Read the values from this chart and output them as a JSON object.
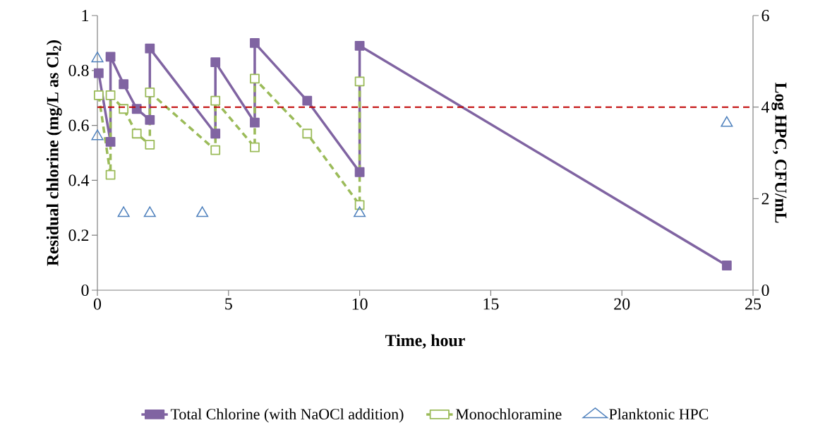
{
  "chart_data": {
    "type": "line",
    "xlabel": "Time, hour",
    "ylabel": "Residual chlorine  (mg/L as Cl$_{2}$)",
    "y2label": "Log HPC, CFU/mL",
    "xlim": [
      0,
      25
    ],
    "xticks": [
      0,
      5,
      10,
      15,
      20,
      25
    ],
    "ylim": [
      0,
      1
    ],
    "yticks": [
      0,
      0.2,
      0.4,
      0.6,
      0.8,
      1
    ],
    "y2lim": [
      0,
      6
    ],
    "y2ticks": [
      0,
      2,
      4,
      6
    ],
    "legend": "bottom",
    "grid": false,
    "series": [
      {
        "name": "Total Chlorine (with NaOCl addition)",
        "color": "#8064a2",
        "marker": "square",
        "line_style": "solid",
        "x": [
          0.05,
          0.5,
          0.5,
          1,
          1.5,
          2,
          2,
          4.5,
          4.5,
          6,
          6,
          8,
          10,
          10,
          24
        ],
        "values": [
          0.79,
          0.54,
          0.85,
          0.75,
          0.66,
          0.62,
          0.88,
          0.57,
          0.83,
          0.61,
          0.9,
          0.69,
          0.43,
          0.89,
          0.09
        ]
      },
      {
        "name": "Monochloramine",
        "color": "#9bbb59",
        "marker": "square",
        "line_style": "dashed",
        "x": [
          0.05,
          0.5,
          0.5,
          1,
          1.5,
          2,
          2,
          4.5,
          4.5,
          6,
          6,
          8,
          10,
          10
        ],
        "values": [
          0.71,
          0.42,
          0.71,
          0.66,
          0.57,
          0.53,
          0.72,
          0.51,
          0.69,
          0.52,
          0.77,
          0.57,
          0.31,
          0.76
        ]
      },
      {
        "name": "Planktonic HPC",
        "type": "scatter",
        "axis": "y2",
        "color": "#4f81bd",
        "marker": "triangle",
        "x": [
          0,
          0,
          1,
          2,
          4,
          10,
          24
        ],
        "values": [
          5.06,
          3.36,
          1.68,
          1.68,
          1.68,
          1.68,
          3.65
        ]
      }
    ],
    "ref_lines": [
      {
        "axis": "y2",
        "value": 4,
        "color": "#c00000",
        "line_style": "dashed"
      }
    ]
  }
}
